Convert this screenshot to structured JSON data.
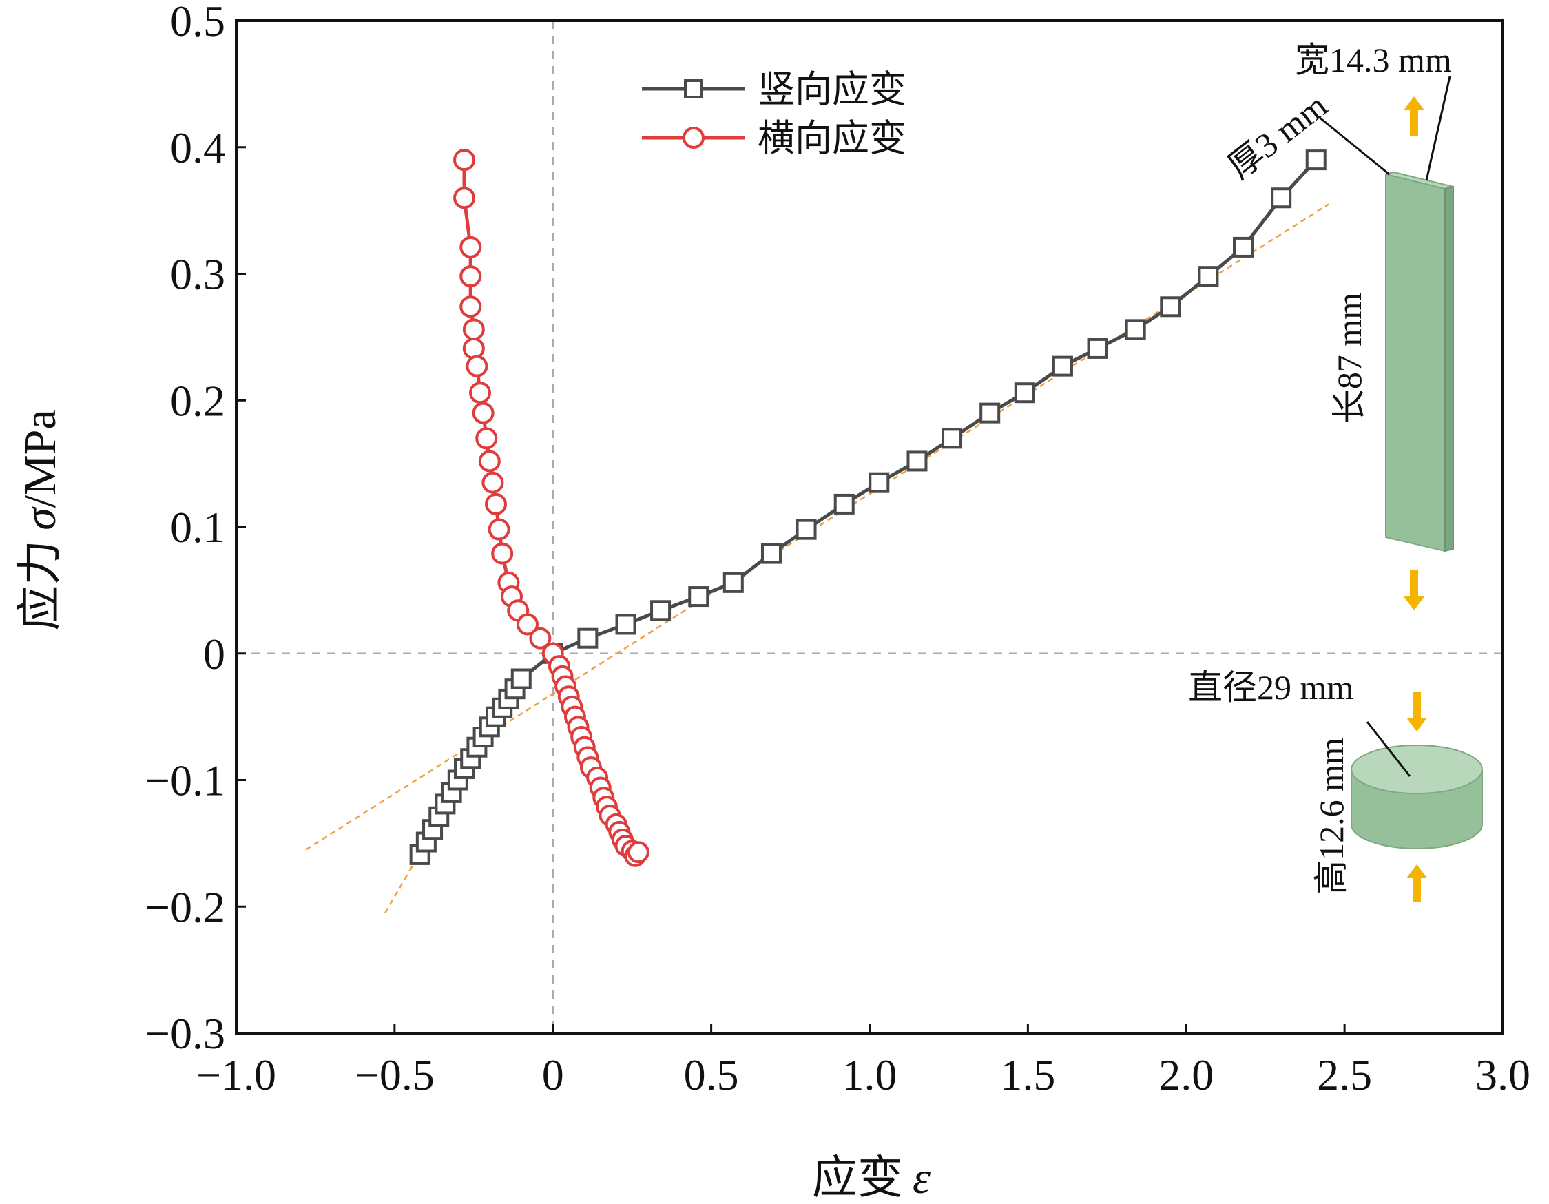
{
  "chart_data": {
    "type": "line",
    "xlabel": "应变",
    "xlabel_symbol": "ε",
    "ylabel": "应力",
    "ylabel_symbol": "σ",
    "ylabel_unit": "/MPa",
    "xlim": [
      -1.0,
      3.0
    ],
    "ylim": [
      -0.3,
      0.5
    ],
    "x_ticks": [
      -1.0,
      -0.5,
      0,
      0.5,
      1.0,
      1.5,
      2.0,
      2.5,
      3.0
    ],
    "x_tick_labels": [
      "−1.0",
      "−0.5",
      "0",
      "0.5",
      "1.0",
      "1.5",
      "2.0",
      "2.5",
      "3.0"
    ],
    "y_ticks": [
      -0.3,
      -0.2,
      -0.1,
      0,
      0.1,
      0.2,
      0.3,
      0.4,
      0.5
    ],
    "y_tick_labels": [
      "−0.3",
      "−0.2",
      "−0.1",
      "0",
      "0.1",
      "0.2",
      "0.3",
      "0.4",
      "0.5"
    ],
    "grid": false,
    "zero_reference_lines": true,
    "legend_position": "top-center",
    "series": [
      {
        "name": "竖向应变",
        "marker": "square",
        "color": "#4a4a4a",
        "x": [
          -0.42,
          -0.4,
          -0.38,
          -0.36,
          -0.34,
          -0.32,
          -0.3,
          -0.28,
          -0.26,
          -0.24,
          -0.22,
          -0.2,
          -0.18,
          -0.16,
          -0.14,
          -0.12,
          -0.1,
          0,
          0.11,
          0.23,
          0.34,
          0.46,
          0.57,
          0.69,
          0.8,
          0.92,
          1.03,
          1.15,
          1.26,
          1.38,
          1.49,
          1.61,
          1.72,
          1.84,
          1.95,
          2.07,
          2.18,
          2.3,
          2.41
        ],
        "y": [
          -0.159,
          -0.149,
          -0.139,
          -0.129,
          -0.119,
          -0.11,
          -0.1,
          -0.091,
          -0.083,
          -0.074,
          -0.066,
          -0.058,
          -0.05,
          -0.043,
          -0.036,
          -0.028,
          -0.02,
          0,
          0.012,
          0.023,
          0.034,
          0.045,
          0.056,
          0.079,
          0.098,
          0.118,
          0.135,
          0.152,
          0.17,
          0.19,
          0.206,
          0.227,
          0.241,
          0.256,
          0.274,
          0.298,
          0.321,
          0.36,
          0.39
        ]
      },
      {
        "name": "横向应变",
        "marker": "circle",
        "color": "#e03c3c",
        "x": [
          -0.28,
          -0.28,
          -0.26,
          -0.26,
          -0.26,
          -0.25,
          -0.25,
          -0.24,
          -0.23,
          -0.22,
          -0.21,
          -0.2,
          -0.19,
          -0.18,
          -0.17,
          -0.16,
          -0.14,
          -0.13,
          -0.11,
          -0.08,
          -0.04,
          0,
          0.02,
          0.03,
          0.04,
          0.05,
          0.06,
          0.07,
          0.08,
          0.09,
          0.1,
          0.11,
          0.12,
          0.14,
          0.15,
          0.16,
          0.17,
          0.18,
          0.2,
          0.21,
          0.22,
          0.23,
          0.25,
          0.26,
          0.27
        ],
        "y": [
          0.39,
          0.36,
          0.321,
          0.298,
          0.274,
          0.256,
          0.241,
          0.227,
          0.206,
          0.19,
          0.17,
          0.152,
          0.135,
          0.118,
          0.098,
          0.079,
          0.056,
          0.045,
          0.034,
          0.023,
          0.012,
          0,
          -0.01,
          -0.018,
          -0.026,
          -0.034,
          -0.042,
          -0.05,
          -0.058,
          -0.066,
          -0.074,
          -0.082,
          -0.09,
          -0.098,
          -0.106,
          -0.114,
          -0.121,
          -0.128,
          -0.135,
          -0.141,
          -0.147,
          -0.152,
          -0.156,
          -0.16,
          -0.157
        ]
      }
    ],
    "fit_lines": [
      {
        "style": "dashed",
        "color": "#f0a040",
        "x": [
          -0.78,
          2.45
        ],
        "y": [
          -0.155,
          0.355
        ]
      },
      {
        "style": "dashed",
        "color": "#f0a040",
        "x": [
          -0.53,
          -0.1
        ],
        "y": [
          -0.205,
          -0.02
        ]
      }
    ]
  },
  "specimen_annotations": {
    "bar_width": "宽14.3 mm",
    "bar_thickness": "厚3 mm",
    "bar_length": "长87 mm",
    "cylinder_diameter": "直径29 mm",
    "cylinder_height": "高12.6 mm",
    "specimen_color": "#96c09a",
    "arrow_color": "#f4b400"
  }
}
